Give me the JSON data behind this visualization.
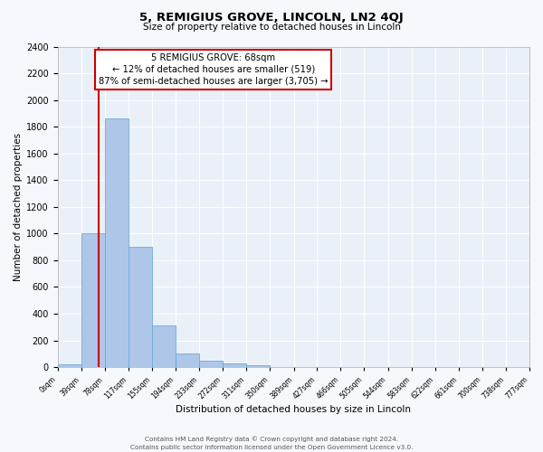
{
  "title": "5, REMIGIUS GROVE, LINCOLN, LN2 4QJ",
  "subtitle": "Size of property relative to detached houses in Lincoln",
  "xlabel": "Distribution of detached houses by size in Lincoln",
  "ylabel": "Number of detached properties",
  "bin_edges": [
    0,
    39,
    78,
    117,
    155,
    194,
    233,
    272,
    311,
    350,
    389,
    427,
    466,
    505,
    544,
    583,
    622,
    661,
    700,
    738,
    777
  ],
  "bin_counts": [
    20,
    1000,
    1860,
    900,
    310,
    100,
    50,
    25,
    15,
    0,
    0,
    0,
    0,
    0,
    0,
    0,
    0,
    0,
    0,
    0
  ],
  "bar_color": "#aec6e8",
  "bar_edge_color": "#6aaed6",
  "background_color": "#eaf0f8",
  "fig_background_color": "#f5f8fc",
  "grid_color": "#ffffff",
  "vline_x": 68,
  "vline_color": "#cc0000",
  "annotation_title": "5 REMIGIUS GROVE: 68sqm",
  "annotation_line1": "← 12% of detached houses are smaller (519)",
  "annotation_line2": "87% of semi-detached houses are larger (3,705) →",
  "annotation_box_color": "#cc0000",
  "ylim": [
    0,
    2400
  ],
  "yticks": [
    0,
    200,
    400,
    600,
    800,
    1000,
    1200,
    1400,
    1600,
    1800,
    2000,
    2200,
    2400
  ],
  "tick_labels": [
    "0sqm",
    "39sqm",
    "78sqm",
    "117sqm",
    "155sqm",
    "194sqm",
    "233sqm",
    "272sqm",
    "311sqm",
    "350sqm",
    "389sqm",
    "427sqm",
    "466sqm",
    "505sqm",
    "544sqm",
    "583sqm",
    "622sqm",
    "661sqm",
    "700sqm",
    "738sqm",
    "777sqm"
  ],
  "footer_line1": "Contains HM Land Registry data © Crown copyright and database right 2024.",
  "footer_line2": "Contains public sector information licensed under the Open Government Licence v3.0."
}
